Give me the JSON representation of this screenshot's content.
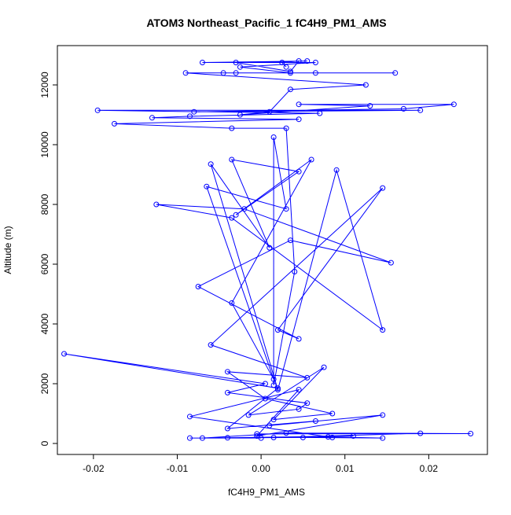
{
  "chart_data": {
    "type": "line",
    "title": "ATOM3 Northeast_Pacific_1 fC4H9_PM1_AMS",
    "xlabel": "fC4H9_PM1_AMS",
    "ylabel": "Altitude (m)",
    "color": "#0000ff",
    "markers": true,
    "x": [
      0.0,
      -0.0085,
      0.005,
      0.0145,
      0.008,
      -0.004,
      0.011,
      -0.007,
      0.003,
      0.025,
      -0.0005,
      0.019,
      0.0015,
      0.0085,
      -0.0085,
      0.0045,
      -0.0005,
      0.0145,
      0.001,
      0.0065,
      -0.004,
      0.002,
      -0.0235,
      0.0005,
      -0.004,
      0.0055,
      0.0045,
      -0.0015,
      0.0075,
      0.0015,
      0.0085,
      0.0005,
      -0.004,
      0.0055,
      -0.006,
      0.0145,
      0.002,
      0.0045,
      -0.0075,
      0.0035,
      0.0155,
      -0.002,
      -0.0125,
      -0.0035,
      0.0145,
      0.009,
      0.002,
      -0.006,
      0.001,
      -0.0035,
      0.0045,
      -0.003,
      0.006,
      -0.0035,
      0.0015,
      -0.0065,
      0.003,
      0.0015,
      0.0015,
      0.004,
      0.003,
      -0.0035,
      -0.0175,
      0.0045,
      -0.013,
      -0.0085,
      0.007,
      -0.0195,
      0.019,
      -0.008,
      0.017,
      0.023,
      0.0045,
      0.013,
      -0.0025,
      0.001,
      0.0035,
      0.0125,
      -0.009,
      0.016,
      -0.0045,
      0.0065,
      -0.003,
      0.0035,
      -0.0025,
      0.0065,
      -0.007,
      0.0055,
      -0.003,
      0.0035,
      0.0045,
      0.0025,
      0.003
    ],
    "values": [
      180,
      180,
      200,
      180,
      220,
      190,
      250,
      180,
      350,
      330,
      320,
      340,
      200,
      200,
      900,
      1800,
      250,
      950,
      600,
      750,
      500,
      1850,
      3000,
      2000,
      1700,
      1350,
      1150,
      950,
      2550,
      800,
      1000,
      1500,
      2400,
      2200,
      3300,
      8550,
      3800,
      3500,
      5250,
      6800,
      6050,
      7850,
      8000,
      7550,
      3800,
      9150,
      1800,
      9350,
      6550,
      9500,
      9100,
      7650,
      9500,
      4700,
      2150,
      8600,
      7850,
      10250,
      1950,
      5750,
      10550,
      10550,
      10700,
      10850,
      10900,
      10950,
      11050,
      11150,
      11150,
      11100,
      11200,
      11350,
      11350,
      11300,
      11000,
      11100,
      11850,
      12000,
      12400,
      12400,
      12400,
      12400,
      12400,
      12400,
      12600,
      12750,
      12750,
      12800,
      12750,
      12450,
      12800,
      12750,
      12600
    ],
    "xlim": [
      -0.0243,
      0.027
    ],
    "ylim": [
      -368,
      13316
    ],
    "xticks": [
      -0.02,
      -0.01,
      {
        "value": 0,
        "label": "0.00"
      },
      0.01,
      0.02
    ],
    "yticks": [
      0,
      2000,
      4000,
      6000,
      8000,
      10000,
      12000
    ]
  }
}
